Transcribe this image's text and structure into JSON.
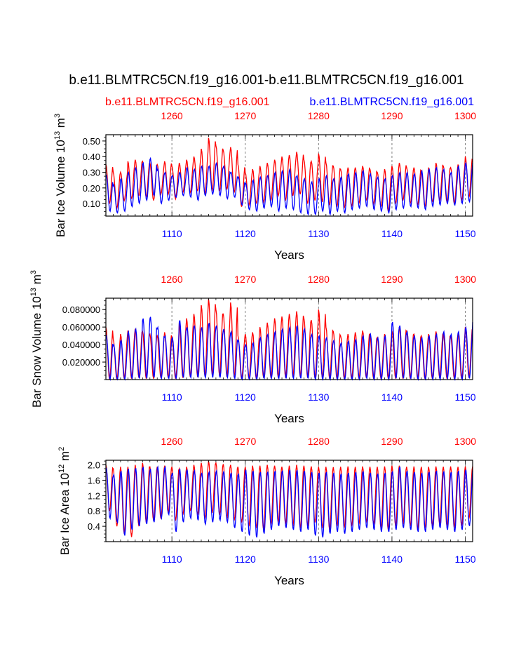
{
  "title": "b.e11.BLMTRC5CN.f19_g16.001-b.e11.BLMTRC5CN.f19_g16.001",
  "legend": {
    "red_label": "b.e11.BLMTRC5CN.f19_g16.001",
    "blue_label": "b.e11.BLMTRC5CN.f19_g16.001"
  },
  "colors": {
    "red": "#ff0000",
    "blue": "#0000ff",
    "axis": "#000000",
    "grid": "#808080"
  },
  "chart_data": [
    {
      "type": "line",
      "ylabel": "Bar Ice Volume 10",
      "ylabel_exp": "13",
      "ylabel_unit": "m",
      "ylabel_unit_exp": "3",
      "xlabel": "Years",
      "ylim": [
        0.02,
        0.54
      ],
      "yticks": [
        0.1,
        0.2,
        0.3,
        0.4,
        0.5
      ],
      "yticklabels": [
        "0.10",
        "0.20",
        "0.30",
        "0.40",
        "0.50"
      ],
      "bottom_axis": {
        "range": [
          1101,
          1151
        ],
        "ticks": [
          1110,
          1120,
          1130,
          1140,
          1150
        ],
        "labels": [
          "1110",
          "1120",
          "1130",
          "1140",
          "1150"
        ]
      },
      "top_axis": {
        "range": [
          1251,
          1301
        ],
        "ticks": [
          1260,
          1270,
          1280,
          1290,
          1300
        ],
        "labels": [
          "1260",
          "1270",
          "1280",
          "1290",
          "1300"
        ]
      },
      "grid_years": [
        1110,
        1120,
        1130,
        1140,
        1150
      ],
      "series": [
        {
          "name": "red",
          "max_values": [
            0.35,
            0.3,
            0.3,
            0.37,
            0.38,
            0.37,
            0.36,
            0.35,
            0.37,
            0.34,
            0.36,
            0.38,
            0.4,
            0.45,
            0.52,
            0.47,
            0.44,
            0.46,
            0.35,
            0.3,
            0.32,
            0.34,
            0.36,
            0.38,
            0.4,
            0.41,
            0.43,
            0.38,
            0.37,
            0.42,
            0.36,
            0.34,
            0.32,
            0.33,
            0.33,
            0.34,
            0.32,
            0.3,
            0.32,
            0.34,
            0.36,
            0.33,
            0.33,
            0.31,
            0.33,
            0.36,
            0.34,
            0.33,
            0.35,
            0.4,
            0.38
          ],
          "min_values": [
            0.1,
            0.07,
            0.12,
            0.13,
            0.15,
            0.14,
            0.12,
            0.16,
            0.16,
            0.13,
            0.17,
            0.17,
            0.18,
            0.16,
            0.18,
            0.18,
            0.19,
            0.17,
            0.08,
            0.09,
            0.1,
            0.11,
            0.12,
            0.15,
            0.12,
            0.15,
            0.16,
            0.1,
            0.12,
            0.11,
            0.09,
            0.08,
            0.07,
            0.08,
            0.1,
            0.12,
            0.1,
            0.08,
            0.05,
            0.1,
            0.12,
            0.1,
            0.09,
            0.08,
            0.11,
            0.12,
            0.11,
            0.1,
            0.12,
            0.14,
            0.12
          ]
        },
        {
          "name": "blue",
          "max_values": [
            0.28,
            0.22,
            0.26,
            0.3,
            0.33,
            0.36,
            0.39,
            0.32,
            0.3,
            0.28,
            0.3,
            0.33,
            0.32,
            0.34,
            0.34,
            0.36,
            0.34,
            0.3,
            0.27,
            0.23,
            0.25,
            0.27,
            0.28,
            0.3,
            0.31,
            0.32,
            0.28,
            0.26,
            0.24,
            0.26,
            0.28,
            0.26,
            0.27,
            0.29,
            0.3,
            0.31,
            0.29,
            0.27,
            0.26,
            0.28,
            0.3,
            0.3,
            0.29,
            0.31,
            0.32,
            0.33,
            0.32,
            0.3,
            0.34,
            0.36,
            0.37
          ],
          "min_values": [
            0.05,
            0.04,
            0.05,
            0.08,
            0.1,
            0.12,
            0.15,
            0.1,
            0.12,
            0.14,
            0.15,
            0.14,
            0.12,
            0.15,
            0.16,
            0.15,
            0.13,
            0.14,
            0.09,
            0.06,
            0.05,
            0.07,
            0.08,
            0.05,
            0.07,
            0.06,
            0.04,
            0.03,
            0.03,
            0.05,
            0.03,
            0.05,
            0.04,
            0.06,
            0.07,
            0.08,
            0.06,
            0.05,
            0.04,
            0.06,
            0.07,
            0.08,
            0.07,
            0.06,
            0.08,
            0.09,
            0.1,
            0.09,
            0.1,
            0.11,
            0.12
          ]
        }
      ]
    },
    {
      "type": "line",
      "ylabel": "Bar Snow Volume 10",
      "ylabel_exp": "13",
      "ylabel_unit": "m",
      "ylabel_unit_exp": "3",
      "xlabel": "Years",
      "ylim": [
        0.0,
        0.093
      ],
      "yticks": [
        0.02,
        0.04,
        0.06,
        0.08
      ],
      "yticklabels": [
        "0.020000",
        "0.040000",
        "0.060000",
        "0.080000"
      ],
      "bottom_axis": {
        "range": [
          1101,
          1151
        ],
        "ticks": [
          1110,
          1120,
          1130,
          1140,
          1150
        ],
        "labels": [
          "1110",
          "1120",
          "1130",
          "1140",
          "1150"
        ]
      },
      "top_axis": {
        "range": [
          1251,
          1301
        ],
        "ticks": [
          1260,
          1270,
          1280,
          1290,
          1300
        ],
        "labels": [
          "1260",
          "1270",
          "1280",
          "1290",
          "1300"
        ]
      },
      "grid_years": [
        1110,
        1120,
        1130,
        1140,
        1150
      ],
      "series": [
        {
          "name": "red",
          "max_values": [
            0.06,
            0.046,
            0.052,
            0.056,
            0.058,
            0.055,
            0.052,
            0.05,
            0.054,
            0.048,
            0.065,
            0.07,
            0.075,
            0.085,
            0.092,
            0.08,
            0.075,
            0.088,
            0.05,
            0.052,
            0.054,
            0.06,
            0.065,
            0.07,
            0.072,
            0.075,
            0.078,
            0.07,
            0.068,
            0.08,
            0.06,
            0.055,
            0.05,
            0.052,
            0.054,
            0.056,
            0.05,
            0.048,
            0.052,
            0.056,
            0.06,
            0.055,
            0.052,
            0.05,
            0.052,
            0.055,
            0.053,
            0.05,
            0.052,
            0.06,
            0.055
          ],
          "min_values": [
            0.0,
            0.0,
            0.001,
            0.001,
            0.002,
            0.001,
            0.001,
            0.002,
            0.002,
            0.001,
            0.002,
            0.003,
            0.003,
            0.004,
            0.005,
            0.004,
            0.003,
            0.003,
            0.001,
            0.001,
            0.001,
            0.002,
            0.002,
            0.002,
            0.002,
            0.003,
            0.003,
            0.002,
            0.002,
            0.002,
            0.001,
            0.001,
            0.001,
            0.001,
            0.001,
            0.002,
            0.001,
            0.001,
            0.001,
            0.001,
            0.001,
            0.001,
            0.001,
            0.001,
            0.001,
            0.002,
            0.001,
            0.001,
            0.001,
            0.002,
            0.001
          ]
        },
        {
          "name": "blue",
          "max_values": [
            0.05,
            0.04,
            0.045,
            0.055,
            0.058,
            0.07,
            0.072,
            0.06,
            0.05,
            0.048,
            0.068,
            0.06,
            0.062,
            0.06,
            0.065,
            0.062,
            0.058,
            0.055,
            0.045,
            0.04,
            0.042,
            0.048,
            0.052,
            0.055,
            0.058,
            0.06,
            0.062,
            0.058,
            0.052,
            0.05,
            0.048,
            0.045,
            0.042,
            0.044,
            0.046,
            0.05,
            0.052,
            0.048,
            0.05,
            0.066,
            0.062,
            0.055,
            0.05,
            0.048,
            0.05,
            0.052,
            0.055,
            0.052,
            0.055,
            0.06,
            0.068
          ],
          "min_values": [
            0.0,
            0.0,
            0.0,
            0.001,
            0.001,
            0.001,
            0.002,
            0.001,
            0.001,
            0.001,
            0.002,
            0.002,
            0.002,
            0.002,
            0.002,
            0.002,
            0.002,
            0.001,
            0.0,
            0.0,
            0.0,
            0.001,
            0.001,
            0.001,
            0.001,
            0.001,
            0.001,
            0.001,
            0.0,
            0.0,
            0.0,
            0.0,
            0.0,
            0.0,
            0.0,
            0.001,
            0.0,
            0.0,
            0.0,
            0.001,
            0.001,
            0.001,
            0.0,
            0.0,
            0.0,
            0.0,
            0.001,
            0.0,
            0.0,
            0.001,
            0.001
          ]
        }
      ]
    },
    {
      "type": "line",
      "ylabel": "Bar Ice Area 10",
      "ylabel_exp": "12",
      "ylabel_unit": "m",
      "ylabel_unit_exp": "2",
      "xlabel": "Years",
      "ylim": [
        0.0,
        2.12
      ],
      "yticks": [
        0.4,
        0.8,
        1.2,
        1.6,
        2.0
      ],
      "yticklabels": [
        "0.4",
        "0.8",
        "1.2",
        "1.6",
        "2.0"
      ],
      "bottom_axis": {
        "range": [
          1101,
          1151
        ],
        "ticks": [
          1110,
          1120,
          1130,
          1140,
          1150
        ],
        "labels": [
          "1110",
          "1120",
          "1130",
          "1140",
          "1150"
        ]
      },
      "top_axis": {
        "range": [
          1251,
          1301
        ],
        "ticks": [
          1260,
          1270,
          1280,
          1290,
          1300
        ],
        "labels": [
          "1260",
          "1270",
          "1280",
          "1290",
          "1300"
        ]
      },
      "grid_years": [
        1110,
        1120,
        1130,
        1140,
        1150
      ],
      "series": [
        {
          "name": "red",
          "max_values": [
            2.0,
            1.9,
            1.95,
            1.95,
            2.0,
            2.05,
            1.95,
            1.95,
            1.98,
            1.95,
            1.9,
            1.95,
            2.0,
            2.05,
            2.1,
            2.05,
            2.02,
            2.0,
            1.95,
            1.95,
            1.98,
            1.98,
            2.0,
            1.98,
            1.95,
            1.98,
            2.0,
            1.98,
            1.96,
            1.95,
            1.95,
            1.94,
            1.95,
            1.96,
            1.95,
            1.96,
            1.95,
            1.95,
            1.96,
            1.98,
            1.98,
            1.95,
            1.96,
            1.95,
            1.95,
            1.96,
            1.95,
            1.96,
            1.95,
            1.96,
            1.96
          ],
          "min_values": [
            0.8,
            0.4,
            0.2,
            0.12,
            0.4,
            0.5,
            0.55,
            0.6,
            0.75,
            0.55,
            0.7,
            0.8,
            0.7,
            0.6,
            0.75,
            0.7,
            0.6,
            0.55,
            0.5,
            0.4,
            0.35,
            0.3,
            0.45,
            0.5,
            0.45,
            0.4,
            0.35,
            0.4,
            0.5,
            0.35,
            0.3,
            0.4,
            0.35,
            0.4,
            0.45,
            0.5,
            0.45,
            0.35,
            0.3,
            0.4,
            0.45,
            0.4,
            0.3,
            0.35,
            0.4,
            0.45,
            0.4,
            0.35,
            0.4,
            0.6,
            0.65
          ]
        },
        {
          "name": "blue",
          "max_values": [
            1.9,
            1.75,
            1.85,
            1.9,
            1.92,
            1.95,
            1.9,
            1.95,
            1.95,
            1.8,
            1.9,
            1.88,
            1.85,
            1.8,
            1.82,
            1.85,
            1.84,
            1.8,
            1.78,
            1.88,
            1.85,
            1.82,
            1.83,
            1.85,
            1.86,
            1.88,
            1.87,
            1.85,
            1.82,
            1.8,
            1.82,
            1.8,
            1.78,
            1.8,
            1.82,
            1.84,
            1.8,
            1.78,
            1.8,
            1.84,
            1.96,
            1.85,
            1.82,
            1.8,
            1.82,
            1.85,
            1.84,
            1.82,
            1.85,
            1.88,
            1.9
          ],
          "min_values": [
            0.6,
            0.5,
            0.15,
            0.3,
            0.4,
            0.45,
            0.5,
            0.6,
            0.7,
            0.25,
            0.5,
            0.6,
            0.55,
            0.45,
            0.5,
            0.55,
            0.5,
            0.35,
            0.25,
            0.15,
            0.1,
            0.2,
            0.3,
            0.4,
            0.35,
            0.3,
            0.25,
            0.3,
            0.15,
            0.1,
            0.2,
            0.25,
            0.2,
            0.25,
            0.3,
            0.35,
            0.3,
            0.25,
            0.25,
            0.3,
            0.35,
            0.3,
            0.25,
            0.25,
            0.3,
            0.35,
            0.3,
            0.25,
            0.3,
            0.4,
            0.5
          ]
        }
      ]
    }
  ]
}
